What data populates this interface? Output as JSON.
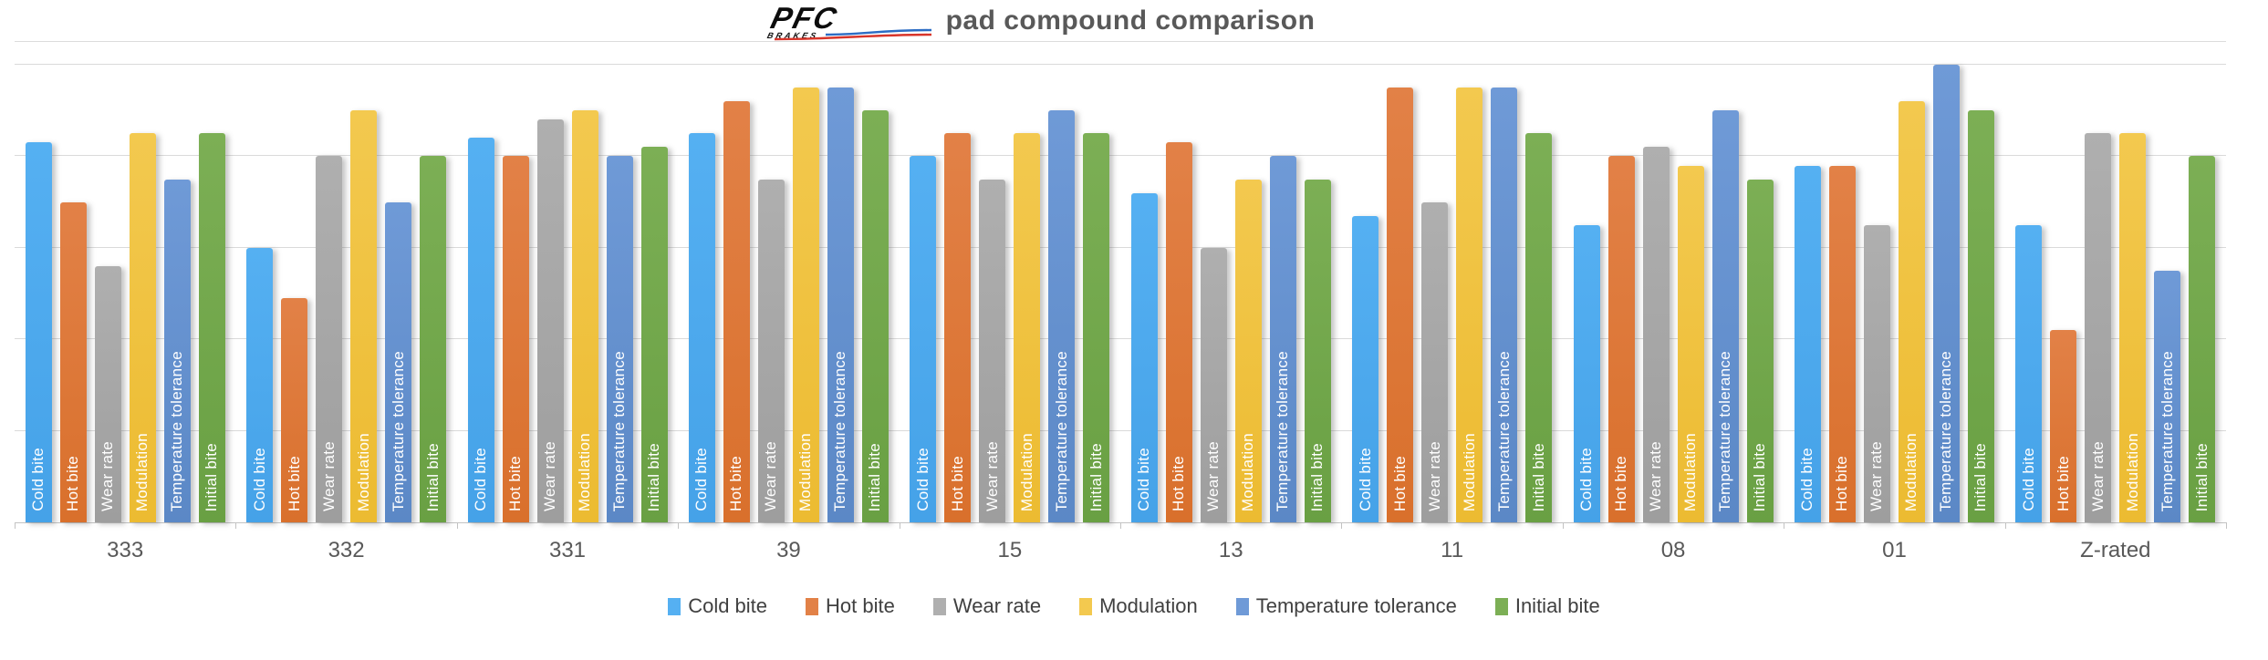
{
  "header": {
    "logo": {
      "brand": "PFC",
      "sub": "BRAKES"
    },
    "title": "pad compound comparison"
  },
  "chart_data": {
    "type": "bar",
    "title": "pad compound comparison",
    "categories": [
      "333",
      "332",
      "331",
      "39",
      "15",
      "13",
      "11",
      "08",
      "01",
      "Z-rated"
    ],
    "series": [
      {
        "name": "Cold bite",
        "color": "#55B0F2",
        "color2": "#45A2E8",
        "values": [
          8.3,
          6.0,
          8.4,
          8.5,
          8.0,
          7.2,
          6.7,
          6.5,
          7.8,
          6.5
        ]
      },
      {
        "name": "Hot bite",
        "color": "#E28147",
        "color2": "#D9702C",
        "values": [
          7.0,
          4.9,
          8.0,
          9.2,
          8.5,
          8.3,
          9.5,
          8.0,
          7.8,
          4.2
        ]
      },
      {
        "name": "Wear rate",
        "color": "#AFAFAF",
        "color2": "#9E9E9E",
        "values": [
          5.6,
          8.0,
          8.8,
          7.5,
          7.5,
          6.0,
          7.0,
          8.2,
          6.5,
          8.5
        ]
      },
      {
        "name": "Modulation",
        "color": "#F3C94F",
        "color2": "#ECBB31",
        "values": [
          8.5,
          9.0,
          9.0,
          9.5,
          8.5,
          7.5,
          9.5,
          7.8,
          9.2,
          8.5
        ]
      },
      {
        "name": "Temperature tolerance",
        "color": "#6F9AD7",
        "color2": "#5B88C6",
        "values": [
          7.5,
          7.0,
          8.0,
          9.5,
          9.0,
          8.0,
          9.5,
          9.0,
          10.0,
          5.5
        ]
      },
      {
        "name": "Initial bite",
        "color": "#7CAF55",
        "color2": "#69A043",
        "values": [
          8.5,
          8.0,
          8.2,
          9.0,
          8.5,
          7.5,
          8.5,
          7.5,
          9.0,
          8.0
        ]
      }
    ],
    "ylim": [
      0,
      10.5
    ],
    "gridlines_at": [
      2,
      4,
      6,
      8,
      10
    ],
    "value_axis_labels": "none",
    "grid": true,
    "legend_position": "bottom",
    "bar_labels": "series name shown vertically in white inside each bar"
  },
  "legend": {
    "items": [
      "Cold bite",
      "Hot bite",
      "Wear rate",
      "Modulation",
      "Temperature tolerance",
      "Initial bite"
    ]
  },
  "colors": {
    "title_text": "#595959",
    "category_text": "#595959",
    "legend_text": "#404040",
    "gridline": "#DADADA",
    "axis_line": "#C3C3C3",
    "logo_red": "#D8352A",
    "logo_blue": "#2B6CC4"
  }
}
